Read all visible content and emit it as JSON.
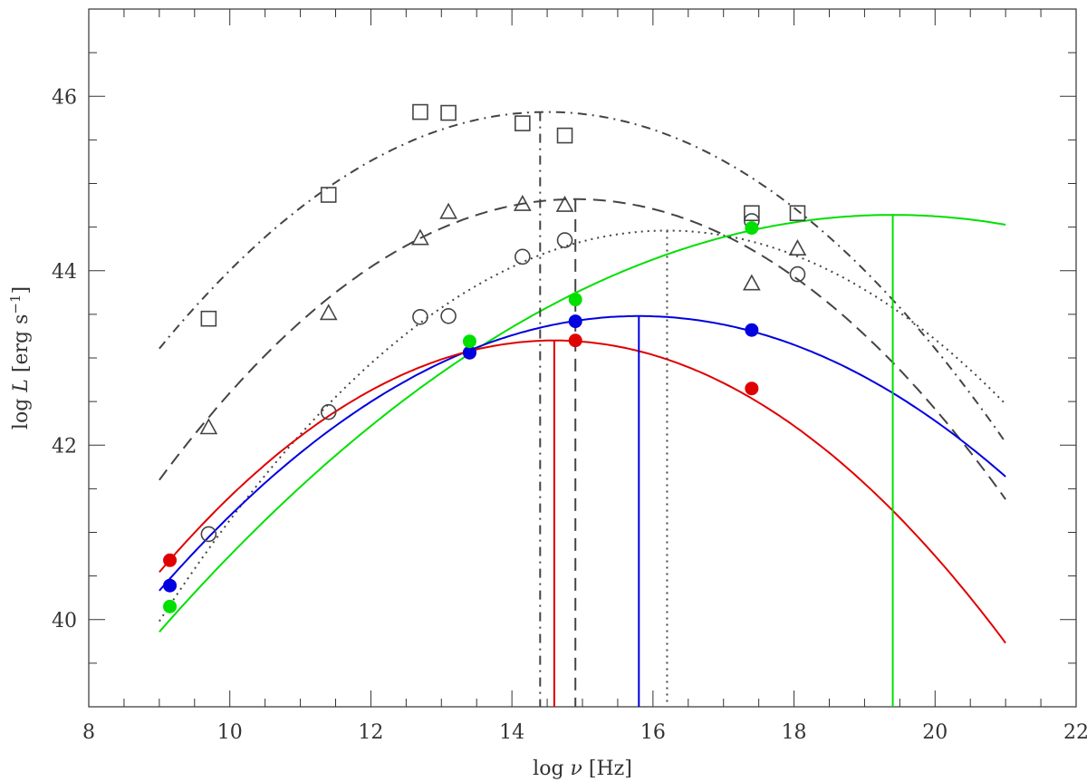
{
  "chart_data": {
    "type": "scatter",
    "xlabel": "log ν [Hz]",
    "ylabel": "log L [erg s⁻¹]",
    "xlim": [
      8,
      22
    ],
    "ylim": [
      39,
      47
    ],
    "xticks": [
      8,
      10,
      12,
      14,
      16,
      18,
      20,
      22
    ],
    "yticks": [
      40,
      42,
      44,
      46
    ],
    "grid": false,
    "series": [
      {
        "marker": "open-square",
        "color": "#444444",
        "x": [
          9.7,
          11.4,
          12.7,
          13.1,
          14.15,
          14.75,
          17.4,
          18.05
        ],
        "y": [
          43.45,
          44.87,
          45.82,
          45.81,
          45.69,
          45.55,
          44.66,
          44.66
        ]
      },
      {
        "marker": "open-triangle",
        "color": "#444444",
        "x": [
          9.7,
          11.4,
          12.7,
          13.1,
          14.15,
          14.75,
          17.4,
          18.05
        ],
        "y": [
          42.2,
          43.51,
          44.37,
          44.67,
          44.76,
          44.75,
          43.85,
          44.25
        ]
      },
      {
        "marker": "open-circle",
        "color": "#444444",
        "x": [
          9.7,
          11.4,
          12.7,
          13.1,
          14.15,
          14.75,
          17.4,
          18.05
        ],
        "y": [
          40.98,
          42.38,
          43.47,
          43.48,
          44.16,
          44.35,
          44.57,
          43.96
        ]
      },
      {
        "marker": "filled-circle",
        "color": "#e00000",
        "x": [
          9.15,
          13.4,
          14.9,
          17.4
        ],
        "y": [
          40.68,
          43.06,
          43.2,
          42.65
        ]
      },
      {
        "marker": "filled-circle",
        "color": "#0000e0",
        "x": [
          9.15,
          13.4,
          14.9,
          17.4
        ],
        "y": [
          40.39,
          43.06,
          43.42,
          43.32
        ]
      },
      {
        "marker": "filled-circle",
        "color": "#00e000",
        "x": [
          9.15,
          13.4,
          14.9,
          17.4
        ],
        "y": [
          40.15,
          43.19,
          43.67,
          44.49
        ]
      }
    ],
    "curves": [
      {
        "style": "dash-dot",
        "color": "#444444",
        "peak_x": 14.5,
        "peak_y": 45.82,
        "curvature": 0.0897,
        "x_range": [
          9,
          21
        ],
        "drop_line_x": 14.4
      },
      {
        "style": "dashed",
        "color": "#444444",
        "peak_x": 14.9,
        "peak_y": 44.82,
        "curvature": 0.0925,
        "x_range": [
          9,
          21
        ],
        "drop_line_x": 14.9
      },
      {
        "style": "dotted",
        "color": "#444444",
        "peak_x": 16.2,
        "peak_y": 44.46,
        "curvature": 0.0864,
        "x_range": [
          9,
          21
        ],
        "drop_line_x": 16.2
      },
      {
        "style": "solid",
        "color": "#00e000",
        "peak_x": 19.4,
        "peak_y": 44.64,
        "curvature": 0.0442,
        "x_range": [
          9,
          21
        ],
        "drop_line_x": 19.4
      },
      {
        "style": "solid",
        "color": "#0000e0",
        "peak_x": 15.8,
        "peak_y": 43.48,
        "curvature": 0.0681,
        "x_range": [
          9,
          21
        ],
        "drop_line_x": 15.8
      },
      {
        "style": "solid",
        "color": "#e00000",
        "peak_x": 14.6,
        "peak_y": 43.2,
        "curvature": 0.0847,
        "x_range": [
          9,
          21
        ],
        "drop_line_x": 14.6
      }
    ]
  }
}
